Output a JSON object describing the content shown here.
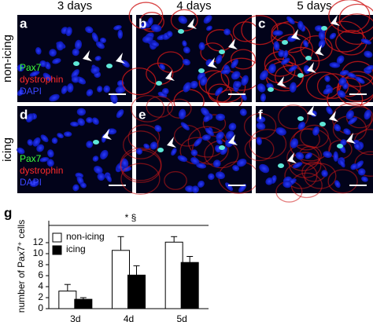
{
  "columns": [
    "3 days",
    "4 days",
    "5 days"
  ],
  "rows": [
    "non-icing",
    "icing"
  ],
  "panels": [
    "a",
    "b",
    "c",
    "d",
    "e",
    "f"
  ],
  "stain_legend": [
    "Pax7",
    "dystrophin",
    "DAPI"
  ],
  "chart_data": {
    "type": "bar",
    "panel_label": "g",
    "y_label": "number of Pax7⁺ cells",
    "annotation": "* §",
    "categories": [
      "3d",
      "4d",
      "5d"
    ],
    "series": [
      {
        "name": "non-icing",
        "color": "#ffffff",
        "values": [
          3.2,
          10.6,
          12.1
        ],
        "errors": [
          1.2,
          2.5,
          1.0
        ]
      },
      {
        "name": "icing",
        "color": "#000000",
        "values": [
          1.7,
          6.1,
          8.4
        ],
        "errors": [
          0.3,
          1.7,
          1.1
        ]
      }
    ],
    "ylim": [
      0,
      16
    ],
    "yticks": [
      0,
      2,
      4,
      6,
      8,
      10,
      12
    ],
    "legend": "upper left"
  }
}
